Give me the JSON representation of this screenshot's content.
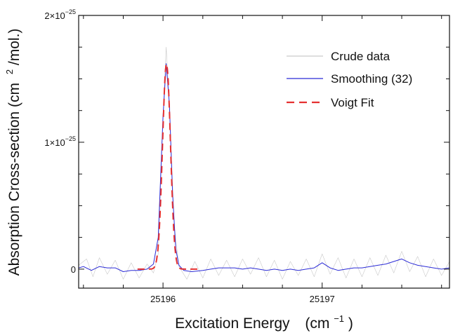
{
  "chart_data": {
    "type": "line",
    "xlabel": "Excitation Energy",
    "xlabel_unit": "(cm",
    "xlabel_unit_exp": "−1",
    "xlabel_unit_close": ")",
    "ylabel": "Absorption Cross-section (cm",
    "ylabel_exp": "2",
    "ylabel_tail": "/mol.)",
    "xlim": [
      25195.47,
      25197.8
    ],
    "ylim": [
      -1.5e-26,
      2e-25
    ],
    "x_ticks": [
      {
        "value": 25196,
        "label": "25196"
      },
      {
        "value": 25197,
        "label": "25197"
      }
    ],
    "y_ticks": [
      {
        "value": 0,
        "base": "0",
        "exp": ""
      },
      {
        "value": 1e-25,
        "base": "1×10",
        "exp": "−25"
      },
      {
        "value": 2e-25,
        "base": "2×10",
        "exp": "−25"
      }
    ],
    "grid": false,
    "legend_position": "top-right",
    "series": [
      {
        "name": "Crude data",
        "color": "#c9c9c9",
        "style": "solid",
        "width": 0.6,
        "values": [
          [
            25195.47,
            3e-27
          ],
          [
            25195.52,
            8e-27
          ],
          [
            25195.56,
            -6e-27
          ],
          [
            25195.6,
            9e-27
          ],
          [
            25195.65,
            -4e-27
          ],
          [
            25195.7,
            7e-27
          ],
          [
            25195.75,
            -8e-27
          ],
          [
            25195.8,
            5e-27
          ],
          [
            25195.85,
            -7e-27
          ],
          [
            25195.9,
            4e-27
          ],
          [
            25195.94,
            -3e-27
          ],
          [
            25195.97,
            1.2e-26
          ],
          [
            25196.0,
            1.2e-25
          ],
          [
            25196.02,
            1.75e-25
          ],
          [
            25196.04,
            1.3e-25
          ],
          [
            25196.07,
            3.5e-26
          ],
          [
            25196.1,
            2e-27
          ],
          [
            25196.15,
            -8e-27
          ],
          [
            25196.2,
            6e-27
          ],
          [
            25196.25,
            -7e-27
          ],
          [
            25196.3,
            8e-27
          ],
          [
            25196.35,
            -5e-27
          ],
          [
            25196.4,
            7e-27
          ],
          [
            25196.45,
            -6e-27
          ],
          [
            25196.5,
            8e-27
          ],
          [
            25196.55,
            -4e-27
          ],
          [
            25196.6,
            9e-27
          ],
          [
            25196.65,
            -6e-27
          ],
          [
            25196.7,
            7e-27
          ],
          [
            25196.75,
            -8e-27
          ],
          [
            25196.8,
            6e-27
          ],
          [
            25196.85,
            -5e-27
          ],
          [
            25196.9,
            8e-27
          ],
          [
            25196.95,
            -6e-27
          ],
          [
            25197.0,
            1.2e-26
          ],
          [
            25197.05,
            -4e-27
          ],
          [
            25197.1,
            9e-27
          ],
          [
            25197.15,
            -7e-27
          ],
          [
            25197.2,
            8e-27
          ],
          [
            25197.25,
            -6e-27
          ],
          [
            25197.3,
            9e-27
          ],
          [
            25197.35,
            -5e-27
          ],
          [
            25197.4,
            1.1e-26
          ],
          [
            25197.45,
            -3e-27
          ],
          [
            25197.5,
            1.4e-26
          ],
          [
            25197.55,
            -2e-27
          ],
          [
            25197.6,
            1e-26
          ],
          [
            25197.65,
            -6e-27
          ],
          [
            25197.7,
            8e-27
          ],
          [
            25197.75,
            -5e-27
          ],
          [
            25197.8,
            6e-27
          ]
        ]
      },
      {
        "name": "Smoothing (32)",
        "color": "#2b2bd6",
        "style": "solid",
        "width": 1.0,
        "values": [
          [
            25195.47,
            1e-27
          ],
          [
            25195.5,
            2e-27
          ],
          [
            25195.55,
            -1e-27
          ],
          [
            25195.6,
            2e-27
          ],
          [
            25195.65,
            1e-27
          ],
          [
            25195.7,
            1e-27
          ],
          [
            25195.75,
            -2e-27
          ],
          [
            25195.8,
            -1e-27
          ],
          [
            25195.85,
            -1e-27
          ],
          [
            25195.9,
            0
          ],
          [
            25195.94,
            4e-27
          ],
          [
            25195.97,
            2.5e-26
          ],
          [
            25196.0,
            1.2e-25
          ],
          [
            25196.02,
            1.62e-25
          ],
          [
            25196.04,
            1.3e-25
          ],
          [
            25196.06,
            6e-26
          ],
          [
            25196.08,
            1.6e-26
          ],
          [
            25196.1,
            3e-27
          ],
          [
            25196.13,
            -1e-27
          ],
          [
            25196.18,
            -2e-27
          ],
          [
            25196.25,
            -1e-27
          ],
          [
            25196.3,
            0
          ],
          [
            25196.35,
            1e-27
          ],
          [
            25196.4,
            1e-27
          ],
          [
            25196.45,
            1e-27
          ],
          [
            25196.5,
            0
          ],
          [
            25196.55,
            1e-27
          ],
          [
            25196.6,
            0
          ],
          [
            25196.65,
            -1e-27
          ],
          [
            25196.7,
            0
          ],
          [
            25196.75,
            -1e-27
          ],
          [
            25196.8,
            0
          ],
          [
            25196.85,
            -1e-27
          ],
          [
            25196.9,
            0
          ],
          [
            25196.95,
            1e-27
          ],
          [
            25197.0,
            5e-27
          ],
          [
            25197.05,
            1e-27
          ],
          [
            25197.1,
            -1e-27
          ],
          [
            25197.15,
            0
          ],
          [
            25197.2,
            1e-27
          ],
          [
            25197.25,
            1e-27
          ],
          [
            25197.3,
            2e-27
          ],
          [
            25197.35,
            3e-27
          ],
          [
            25197.4,
            4e-27
          ],
          [
            25197.45,
            6e-27
          ],
          [
            25197.5,
            8e-27
          ],
          [
            25197.55,
            5e-27
          ],
          [
            25197.6,
            3e-27
          ],
          [
            25197.65,
            2e-27
          ],
          [
            25197.7,
            1e-27
          ],
          [
            25197.75,
            0
          ],
          [
            25197.8,
            1e-27
          ]
        ]
      },
      {
        "name": "Voigt Fit",
        "color": "#e53030",
        "style": "dashed",
        "width": 2.0,
        "peak": {
          "center": 25196.022,
          "amplitude": 1.62e-25,
          "sigma": 0.025
        },
        "range": [
          25195.84,
          25196.22
        ]
      }
    ]
  }
}
